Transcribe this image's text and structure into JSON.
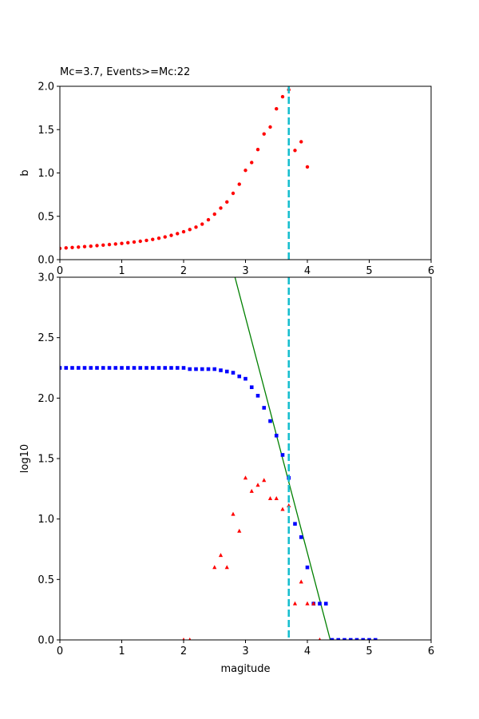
{
  "chart_data": [
    {
      "type": "scatter",
      "title": "Mc=3.7, Events>=Mc:22",
      "xlabel": "",
      "ylabel": "b",
      "xlim": [
        0,
        6
      ],
      "ylim": [
        0,
        2.0
      ],
      "xticks": [
        "0",
        "1",
        "2",
        "3",
        "4",
        "5",
        "6"
      ],
      "yticks": [
        "0.0",
        "0.5",
        "1.0",
        "1.5",
        "2.0"
      ],
      "grid": false,
      "mc_line": 3.7,
      "series": [
        {
          "color": "#ff0000",
          "marker": "circle",
          "x": [
            0.0,
            0.1,
            0.2,
            0.3,
            0.4,
            0.5,
            0.6,
            0.7,
            0.8,
            0.9,
            1.0,
            1.1,
            1.2,
            1.3,
            1.4,
            1.5,
            1.6,
            1.7,
            1.8,
            1.9,
            2.0,
            2.1,
            2.2,
            2.3,
            2.4,
            2.5,
            2.6,
            2.7,
            2.8,
            2.9,
            3.0,
            3.1,
            3.2,
            3.3,
            3.4,
            3.5,
            3.6,
            3.7,
            3.8,
            3.9,
            4.0
          ],
          "y": [
            0.13,
            0.135,
            0.14,
            0.145,
            0.15,
            0.155,
            0.162,
            0.168,
            0.174,
            0.18,
            0.187,
            0.195,
            0.203,
            0.212,
            0.222,
            0.233,
            0.247,
            0.262,
            0.28,
            0.3,
            0.322,
            0.347,
            0.375,
            0.41,
            0.46,
            0.525,
            0.595,
            0.665,
            0.765,
            0.87,
            1.03,
            1.12,
            1.27,
            1.45,
            1.53,
            1.74,
            1.88,
            1.96,
            1.26,
            1.36,
            1.07
          ]
        }
      ]
    },
    {
      "type": "scatter",
      "title": "",
      "xlabel": "magitude",
      "ylabel": "log10",
      "xlim": [
        0,
        6
      ],
      "ylim": [
        0,
        3.0
      ],
      "xticks": [
        "0",
        "1",
        "2",
        "3",
        "4",
        "5",
        "6"
      ],
      "yticks": [
        "0.0",
        "0.5",
        "1.0",
        "1.5",
        "2.0",
        "2.5",
        "3.0"
      ],
      "grid": false,
      "mc_line": 3.7,
      "fit_line": {
        "color": "#008000",
        "x": [
          2.83,
          4.37
        ],
        "y": [
          3.0,
          0.0
        ]
      },
      "series": [
        {
          "color": "#0000ff",
          "marker": "square",
          "x": [
            0.0,
            0.1,
            0.2,
            0.3,
            0.4,
            0.5,
            0.6,
            0.7,
            0.8,
            0.9,
            1.0,
            1.1,
            1.2,
            1.3,
            1.4,
            1.5,
            1.6,
            1.7,
            1.8,
            1.9,
            2.0,
            2.1,
            2.2,
            2.3,
            2.4,
            2.5,
            2.6,
            2.7,
            2.8,
            2.9,
            3.0,
            3.1,
            3.2,
            3.3,
            3.4,
            3.5,
            3.6,
            3.7,
            3.8,
            3.9,
            4.0,
            4.1,
            4.2,
            4.3,
            4.4,
            4.5,
            4.6,
            4.7,
            4.8,
            4.9,
            5.0,
            5.1
          ],
          "y": [
            2.25,
            2.25,
            2.25,
            2.25,
            2.25,
            2.25,
            2.25,
            2.25,
            2.25,
            2.25,
            2.25,
            2.25,
            2.25,
            2.25,
            2.25,
            2.25,
            2.25,
            2.25,
            2.25,
            2.25,
            2.25,
            2.24,
            2.24,
            2.24,
            2.24,
            2.24,
            2.23,
            2.22,
            2.21,
            2.18,
            2.16,
            2.09,
            2.02,
            1.92,
            1.81,
            1.69,
            1.53,
            1.34,
            0.96,
            0.85,
            0.6,
            0.3,
            0.3,
            0.3,
            0.0,
            0.0,
            0.0,
            0.0,
            0.0,
            0.0,
            0.0,
            0.0
          ]
        },
        {
          "color": "#ff0000",
          "marker": "triangle",
          "x": [
            2.0,
            2.1,
            2.5,
            2.6,
            2.7,
            2.8,
            2.9,
            3.0,
            3.1,
            3.2,
            3.3,
            3.4,
            3.5,
            3.6,
            3.7,
            3.8,
            3.9,
            4.0,
            4.1,
            4.2
          ],
          "y": [
            0.0,
            0.0,
            0.6,
            0.7,
            0.6,
            1.04,
            0.9,
            1.34,
            1.23,
            1.28,
            1.32,
            1.17,
            1.17,
            1.08,
            1.11,
            0.3,
            0.48,
            0.3,
            0.3,
            0.0
          ]
        }
      ]
    }
  ]
}
